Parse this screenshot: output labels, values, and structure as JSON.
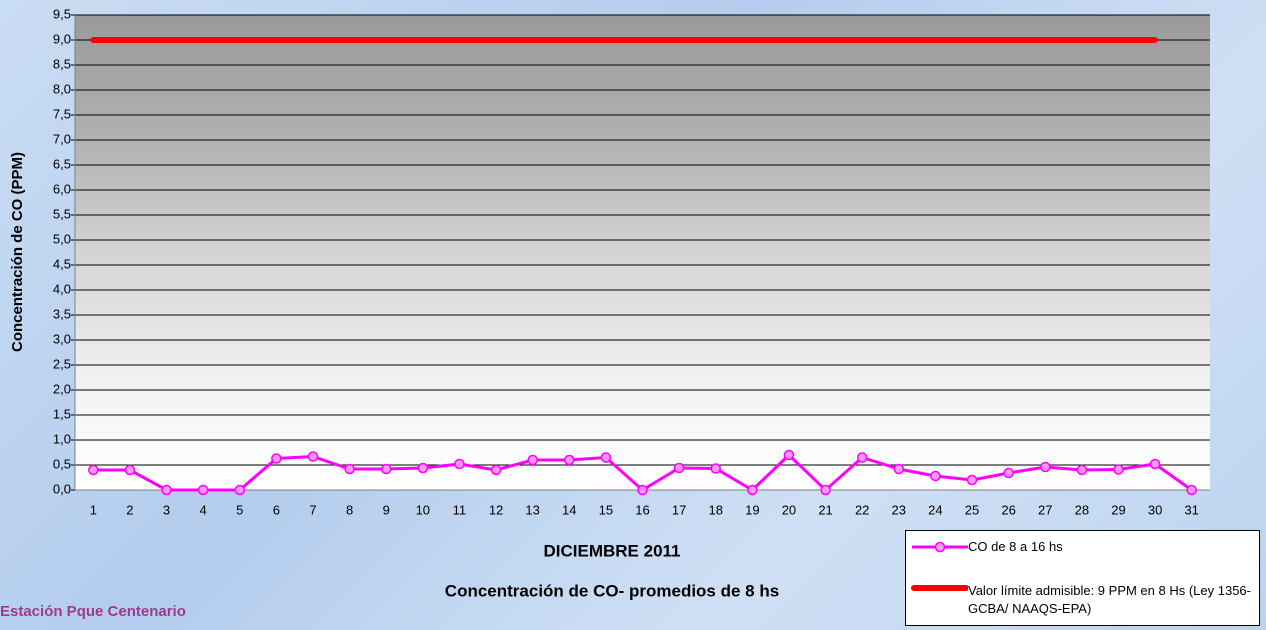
{
  "chart_data": {
    "type": "line",
    "title": "DICIEMBRE 2011",
    "subtitle": "Concentración de CO- promedios de 8 hs",
    "annotation": "Estación Pque Centenario",
    "y_label": "Concentración de CO (PPM)",
    "categories": [
      "1",
      "2",
      "3",
      "4",
      "5",
      "6",
      "7",
      "8",
      "9",
      "10",
      "11",
      "12",
      "13",
      "14",
      "15",
      "16",
      "17",
      "18",
      "19",
      "20",
      "21",
      "22",
      "23",
      "24",
      "25",
      "26",
      "27",
      "28",
      "29",
      "30",
      "31"
    ],
    "series": [
      {
        "name": "CO de 8 a 16 hs",
        "color": "#ff00ff",
        "values": [
          0.4,
          0.4,
          0,
          0,
          0,
          0.63,
          0.67,
          0.42,
          0.42,
          0.44,
          0.52,
          0.4,
          0.6,
          0.6,
          0.65,
          0,
          0.44,
          0.43,
          0,
          0.7,
          0,
          0.65,
          0.42,
          0.28,
          0.2,
          0.34,
          0.46,
          0.4,
          0.41,
          0.52,
          0
        ]
      },
      {
        "name": "Valor límite admisible: 9 PPM en 8 Hs (Ley 1356-GCBA/ NAAQS-EPA)",
        "color": "#ff0000",
        "values": [
          9,
          9,
          9,
          9,
          9,
          9,
          9,
          9,
          9,
          9,
          9,
          9,
          9,
          9,
          9,
          9,
          9,
          9,
          9,
          9,
          9,
          9,
          9,
          9,
          9,
          9,
          9,
          9,
          9,
          9,
          null
        ]
      }
    ],
    "ylim": [
      0,
      9.5
    ],
    "yticks": [
      {
        "value": 0,
        "label": "0,0"
      },
      {
        "value": 0.5,
        "label": "0,5"
      },
      {
        "value": 1,
        "label": "1,0"
      },
      {
        "value": 1.5,
        "label": "1,5"
      },
      {
        "value": 2,
        "label": "2,0"
      },
      {
        "value": 2.5,
        "label": "2,5"
      },
      {
        "value": 3,
        "label": "3,0"
      },
      {
        "value": 3.5,
        "label": "3,5"
      },
      {
        "value": 4,
        "label": "4,0"
      },
      {
        "value": 4.5,
        "label": "4,5"
      },
      {
        "value": 5,
        "label": "5,0"
      },
      {
        "value": 5.5,
        "label": "5,5"
      },
      {
        "value": 6,
        "label": "6,0"
      },
      {
        "value": 6.5,
        "label": "6,5"
      },
      {
        "value": 7,
        "label": "7,0"
      },
      {
        "value": 7.5,
        "label": "7,5"
      },
      {
        "value": 8,
        "label": "8,0"
      },
      {
        "value": 8.5,
        "label": "8,5"
      },
      {
        "value": 9,
        "label": "9,0"
      },
      {
        "value": 9.5,
        "label": "9,5"
      }
    ],
    "grid": true
  }
}
